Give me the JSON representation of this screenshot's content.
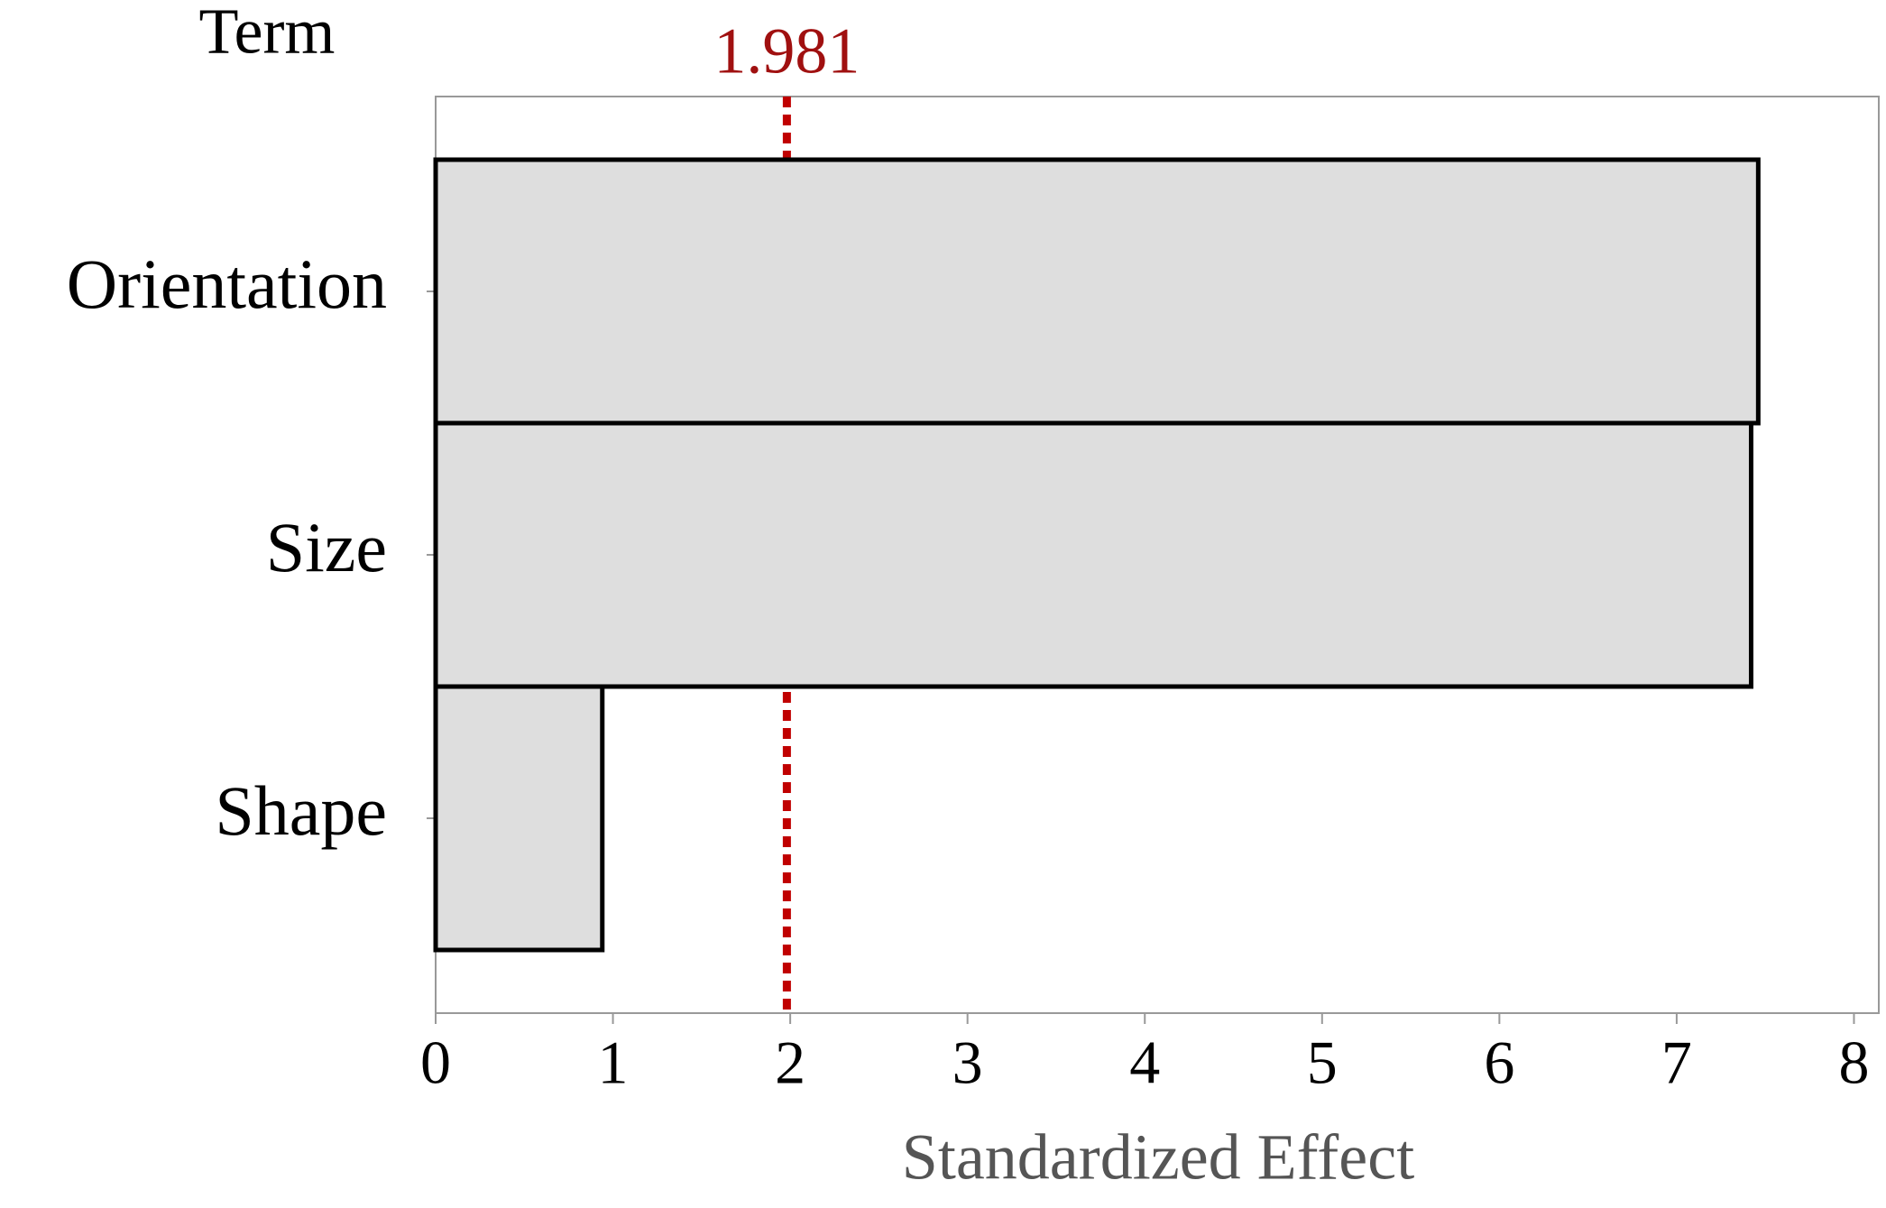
{
  "chart_data": {
    "type": "barh",
    "title": "Term",
    "xlabel": "Standardized Effect",
    "categories": [
      "Orientation",
      "Size",
      "Shape"
    ],
    "values": [
      7.46,
      7.42,
      0.94
    ],
    "color": "#dedede",
    "reference": 1.981,
    "reference_color": "#c00000",
    "xlim": [
      0,
      8.14
    ],
    "xticks": [
      0,
      1,
      2,
      3,
      4,
      5,
      6,
      7,
      8
    ]
  }
}
